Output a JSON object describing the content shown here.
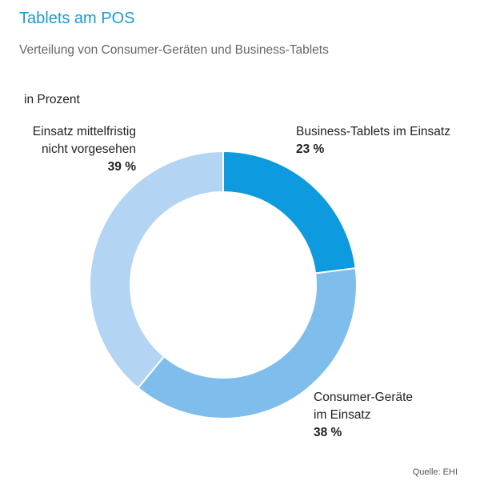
{
  "chart_data": {
    "type": "pie",
    "title": "Tablets am POS",
    "subtitle": "Verteilung von Consumer-Geräten und Business-Tablets",
    "unit_label": "in Prozent",
    "slices": [
      {
        "label_line1": "Business-Tablets im Einsatz",
        "label_line2": "",
        "value": 23,
        "value_label": "23 %",
        "color": "#0e9ade"
      },
      {
        "label_line1": "Consumer-Geräte",
        "label_line2": "im Einsatz",
        "value": 38,
        "value_label": "38 %",
        "color": "#7fbeec"
      },
      {
        "label_line1": "Einsatz mittelfristig",
        "label_line2": "nicht vorgesehen",
        "value": 39,
        "value_label": "39 %",
        "color": "#b4d4f4"
      }
    ],
    "source": "Quelle: EHI"
  }
}
